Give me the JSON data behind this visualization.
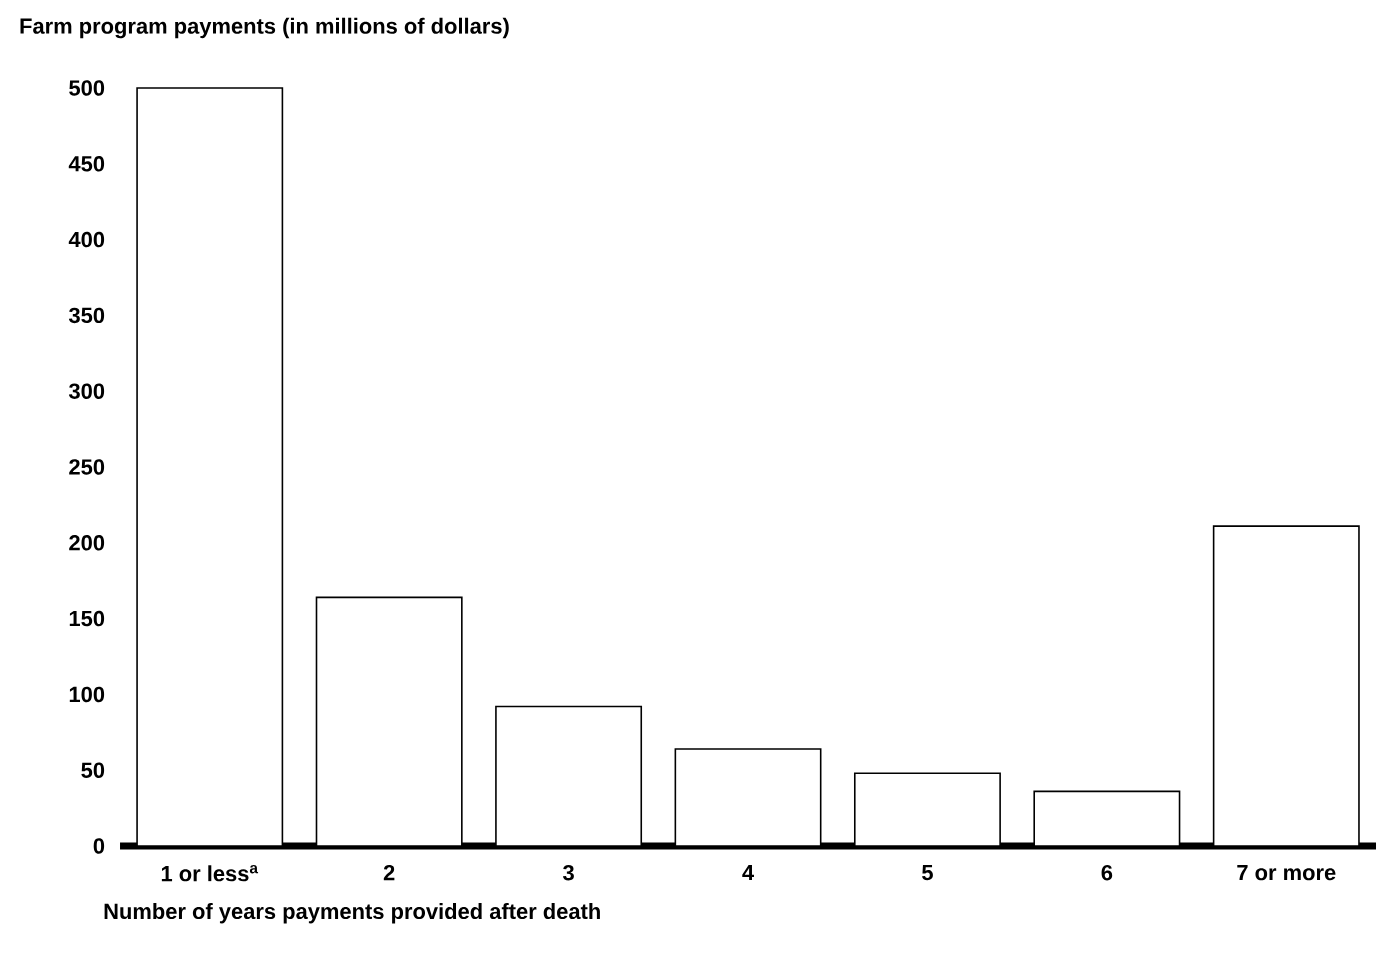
{
  "chart_data": {
    "type": "bar",
    "ylabel": "Farm program payments (in millions of dollars)",
    "xlabel": "Number of years payments provided after death",
    "categories": [
      "1 or less$^{a}$",
      "2",
      "3",
      "4",
      "5",
      "6",
      "7 or more"
    ],
    "values": [
      500,
      164,
      92,
      64,
      48,
      36,
      211
    ],
    "color": "#ffffff",
    "ylim": [
      0,
      500
    ],
    "yticks": [
      0,
      50,
      100,
      150,
      200,
      250,
      300,
      350,
      400,
      450,
      500
    ],
    "grid": false
  }
}
